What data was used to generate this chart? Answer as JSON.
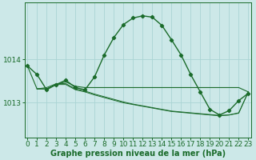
{
  "xlabel": "Graphe pression niveau de la mer (hPa)",
  "bg_color": "#cce8e8",
  "grid_color": "#aad4d4",
  "line_color": "#1a6b2a",
  "x_ticks": [
    0,
    1,
    2,
    3,
    4,
    5,
    6,
    7,
    8,
    9,
    10,
    11,
    12,
    13,
    14,
    15,
    16,
    17,
    18,
    19,
    20,
    21,
    22,
    23
  ],
  "y_ticks": [
    1013,
    1014
  ],
  "ylim": [
    1012.2,
    1015.3
  ],
  "xlim": [
    -0.3,
    23.3
  ],
  "main_line_x": [
    0,
    1,
    2,
    3,
    4,
    5,
    6,
    7,
    8,
    9,
    10,
    11,
    12,
    13,
    14,
    15,
    16,
    17,
    18,
    19,
    20,
    21,
    22,
    23
  ],
  "main_line_y": [
    1013.85,
    1013.65,
    1013.3,
    1013.42,
    1013.52,
    1013.35,
    1013.3,
    1013.6,
    1014.1,
    1014.5,
    1014.8,
    1014.95,
    1015.0,
    1014.97,
    1014.78,
    1014.45,
    1014.1,
    1013.65,
    1013.25,
    1012.85,
    1012.72,
    1012.82,
    1013.05,
    1013.22
  ],
  "flat_line1_x": [
    0,
    1,
    2,
    3,
    4,
    5,
    6,
    7,
    8,
    9,
    10,
    11,
    12,
    13,
    14,
    15,
    16,
    17,
    18,
    19,
    20,
    21,
    22,
    23
  ],
  "flat_line1_y": [
    1013.85,
    1013.32,
    1013.32,
    1013.42,
    1013.48,
    1013.38,
    1013.35,
    1013.35,
    1013.35,
    1013.35,
    1013.35,
    1013.35,
    1013.35,
    1013.35,
    1013.35,
    1013.35,
    1013.35,
    1013.35,
    1013.35,
    1013.35,
    1013.35,
    1013.35,
    1013.35,
    1013.25
  ],
  "flat_line2_x": [
    1,
    2,
    3,
    4,
    5,
    6,
    7,
    8,
    9,
    10,
    11,
    12,
    13,
    14,
    15,
    16,
    17,
    18,
    19,
    20,
    21,
    22,
    23
  ],
  "flat_line2_y": [
    1013.32,
    1013.32,
    1013.42,
    1013.42,
    1013.3,
    1013.25,
    1013.18,
    1013.12,
    1013.06,
    1013.0,
    1012.96,
    1012.92,
    1012.88,
    1012.84,
    1012.8,
    1012.78,
    1012.76,
    1012.74,
    1012.72,
    1012.7,
    1012.72,
    1012.76,
    1013.25
  ],
  "flat_line3_x": [
    1,
    2,
    3,
    4,
    5,
    6,
    7,
    8,
    9,
    10,
    11,
    12,
    13,
    14,
    15,
    16,
    17,
    18,
    19,
    20,
    21,
    22,
    23
  ],
  "flat_line3_y": [
    1013.32,
    1013.35,
    1013.44,
    1013.44,
    1013.32,
    1013.27,
    1013.2,
    1013.14,
    1013.08,
    1013.02,
    1012.97,
    1012.93,
    1012.89,
    1012.85,
    1012.81,
    1012.79,
    1012.77,
    1012.75,
    1012.73,
    1012.71,
    1012.72,
    1012.77,
    1013.25
  ],
  "tick_fontsize": 6.5,
  "label_fontsize": 7.0,
  "marker_style": "D",
  "marker_size": 2.2
}
